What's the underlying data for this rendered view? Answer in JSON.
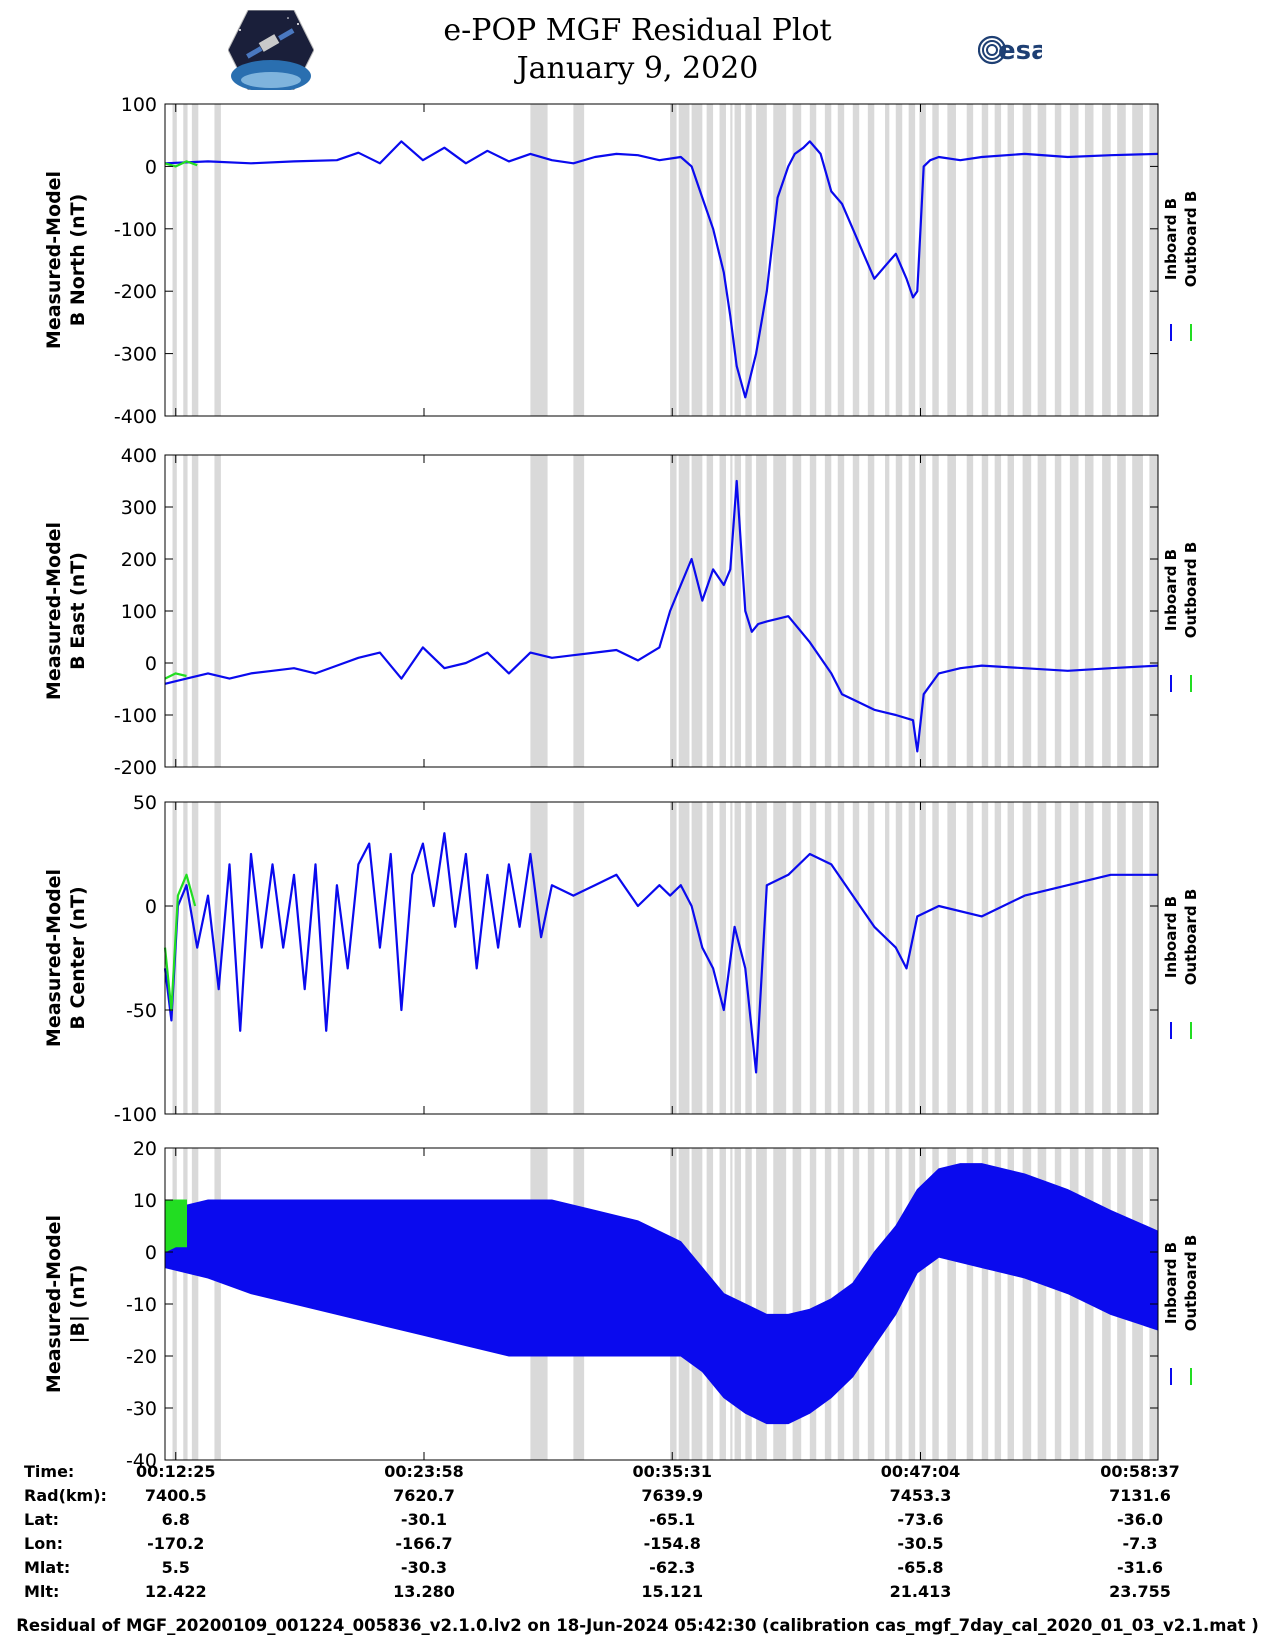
{
  "title": {
    "line1": "e-POP MGF Residual Plot",
    "line2": "January 9, 2020"
  },
  "logos": {
    "left": "cassiope-mission-logo",
    "right_text": "esa"
  },
  "colors": {
    "inboard": "#0a0aee",
    "outboard": "#22dd22",
    "shading": "#d9d9d9"
  },
  "legend": {
    "inboard": "Inboard B",
    "outboard": "Outboard B"
  },
  "chart_data": [
    {
      "type": "line",
      "ylabel": [
        "Measured-Model",
        "B North (nT)"
      ],
      "ylim": [
        -400,
        100
      ],
      "yticks": [
        100,
        0,
        -100,
        -200,
        -300,
        -400
      ],
      "xlim": [
        0,
        46.2
      ],
      "series": [
        {
          "name": "Inboard B",
          "x": [
            0,
            2,
            4,
            6,
            8,
            9,
            10,
            11,
            12,
            13,
            14,
            15,
            16,
            17,
            18,
            19,
            20,
            21,
            22,
            23,
            24,
            24.5,
            25,
            25.5,
            26,
            26.3,
            26.6,
            27,
            27.5,
            28,
            28.5,
            29,
            29.3,
            29.7,
            30,
            30.5,
            31,
            31.5,
            32,
            32.5,
            33,
            33.5,
            34,
            34.5,
            34.8,
            35,
            35.3,
            35.6,
            36,
            37,
            38,
            40,
            42,
            44,
            46.2
          ],
          "y": [
            5,
            8,
            5,
            8,
            10,
            22,
            5,
            40,
            10,
            30,
            5,
            25,
            8,
            20,
            10,
            5,
            15,
            20,
            18,
            10,
            15,
            0,
            -50,
            -100,
            -170,
            -240,
            -320,
            -370,
            -300,
            -200,
            -50,
            0,
            20,
            30,
            40,
            20,
            -40,
            -60,
            -100,
            -140,
            -180,
            -160,
            -140,
            -180,
            -210,
            -200,
            0,
            10,
            15,
            10,
            15,
            20,
            15,
            18,
            20
          ]
        },
        {
          "name": "Outboard B",
          "x": [
            0,
            0.5,
            1,
            1.5
          ],
          "y": [
            5,
            0,
            8,
            2
          ]
        }
      ]
    },
    {
      "type": "line",
      "ylabel": [
        "Measured-Model",
        "B East (nT)"
      ],
      "ylim": [
        -200,
        400
      ],
      "yticks": [
        400,
        300,
        200,
        100,
        0,
        -100,
        -200
      ],
      "xlim": [
        0,
        46.2
      ],
      "series": [
        {
          "name": "Inboard B",
          "x": [
            0,
            1,
            2,
            3,
            4,
            5,
            6,
            7,
            8,
            9,
            10,
            11,
            12,
            13,
            14,
            15,
            16,
            17,
            18,
            19,
            20,
            21,
            22,
            23,
            23.5,
            24,
            24.5,
            25,
            25.5,
            26,
            26.3,
            26.6,
            27,
            27.3,
            27.6,
            28,
            29,
            30,
            31,
            31.5,
            32,
            33,
            34,
            34.8,
            35,
            35.3,
            36,
            37,
            38,
            40,
            42,
            44,
            46.2
          ],
          "y": [
            -40,
            -30,
            -20,
            -30,
            -20,
            -15,
            -10,
            -20,
            -5,
            10,
            20,
            -30,
            30,
            -10,
            0,
            20,
            -20,
            20,
            10,
            15,
            20,
            25,
            5,
            30,
            100,
            150,
            200,
            120,
            180,
            150,
            180,
            350,
            100,
            60,
            75,
            80,
            90,
            40,
            -20,
            -60,
            -70,
            -90,
            -100,
            -110,
            -170,
            -60,
            -20,
            -10,
            -5,
            -10,
            -15,
            -10,
            -5
          ]
        },
        {
          "name": "Outboard B",
          "x": [
            0,
            0.5,
            1
          ],
          "y": [
            -30,
            -20,
            -25
          ]
        }
      ]
    },
    {
      "type": "line",
      "ylabel": [
        "Measured-Model",
        "B Center (nT)"
      ],
      "ylim": [
        -100,
        50
      ],
      "yticks": [
        50,
        0,
        -50,
        -100
      ],
      "xlim": [
        0,
        46.2
      ],
      "series": [
        {
          "name": "Inboard B",
          "x": [
            0,
            0.3,
            0.6,
            1,
            1.5,
            2,
            2.5,
            3,
            3.5,
            4,
            4.5,
            5,
            5.5,
            6,
            6.5,
            7,
            7.5,
            8,
            8.5,
            9,
            9.5,
            10,
            10.5,
            11,
            11.5,
            12,
            12.5,
            13,
            13.5,
            14,
            14.5,
            15,
            15.5,
            16,
            16.5,
            17,
            17.5,
            18,
            19,
            20,
            21,
            22,
            23,
            23.5,
            24,
            24.5,
            25,
            25.5,
            26,
            26.5,
            27,
            27.5,
            28,
            29,
            30,
            31,
            32,
            33,
            34,
            34.5,
            35,
            36,
            38,
            40,
            42,
            44,
            46.2
          ],
          "y": [
            -30,
            -55,
            0,
            10,
            -20,
            5,
            -40,
            20,
            -60,
            25,
            -20,
            20,
            -20,
            15,
            -40,
            20,
            -60,
            10,
            -30,
            20,
            30,
            -20,
            25,
            -50,
            15,
            30,
            0,
            35,
            -10,
            25,
            -30,
            15,
            -20,
            20,
            -10,
            25,
            -15,
            10,
            5,
            10,
            15,
            0,
            10,
            5,
            10,
            0,
            -20,
            -30,
            -50,
            -10,
            -30,
            -80,
            10,
            15,
            25,
            20,
            5,
            -10,
            -20,
            -30,
            -5,
            0,
            -5,
            5,
            10,
            15,
            15
          ]
        },
        {
          "name": "Outboard B",
          "x": [
            0,
            0.3,
            0.6,
            1,
            1.4
          ],
          "y": [
            -20,
            -50,
            5,
            15,
            0
          ]
        }
      ]
    },
    {
      "type": "line",
      "ylabel": [
        "Measured-Model",
        "|B| (nT)"
      ],
      "ylim": [
        -40,
        20
      ],
      "yticks": [
        20,
        10,
        0,
        -10,
        -20,
        -30,
        -40
      ],
      "xlim": [
        0,
        46.2
      ],
      "envelope": true,
      "series": [
        {
          "name": "Inboard B",
          "x": [
            0,
            2,
            4,
            6,
            8,
            10,
            12,
            14,
            16,
            18,
            20,
            22,
            24,
            25,
            26,
            27,
            28,
            29,
            30,
            31,
            32,
            33,
            34,
            35,
            36,
            37,
            38,
            40,
            42,
            44,
            46.2
          ],
          "upper": [
            8,
            10,
            10,
            10,
            10,
            10,
            10,
            10,
            10,
            10,
            8,
            6,
            2,
            -3,
            -8,
            -10,
            -12,
            -12,
            -11,
            -9,
            -6,
            0,
            5,
            12,
            16,
            17,
            17,
            15,
            12,
            8,
            4
          ],
          "lower": [
            -3,
            -5,
            -8,
            -10,
            -12,
            -14,
            -16,
            -18,
            -20,
            -20,
            -20,
            -20,
            -20,
            -23,
            -28,
            -31,
            -33,
            -33,
            -31,
            -28,
            -24,
            -18,
            -12,
            -4,
            -1,
            -2,
            -3,
            -5,
            -8,
            -12,
            -15
          ]
        },
        {
          "name": "Outboard B",
          "x": [
            0,
            0.5,
            1
          ],
          "upper": [
            10,
            10,
            10
          ],
          "lower": [
            0,
            1,
            1
          ]
        }
      ]
    }
  ],
  "gap_boundaries": [
    0.35,
    0.55,
    0.85,
    1.05,
    1.25,
    1.55,
    2.3,
    2.6,
    17.0,
    17.8,
    19.0,
    19.5,
    23.5,
    23.8,
    23.9,
    24.4,
    24.5,
    25.0,
    25.2,
    25.5,
    25.8,
    26.1,
    26.3,
    26.4,
    26.5,
    26.8,
    27.0,
    27.3,
    27.5,
    28.0,
    28.3,
    28.9,
    29.2,
    29.6,
    30.0,
    30.3,
    30.7,
    31.0,
    31.3,
    31.6,
    32.0,
    32.3,
    32.7,
    33.0,
    33.5,
    33.7,
    34.0,
    34.3,
    34.6,
    34.9,
    35.1,
    35.4,
    35.7,
    36.0,
    36.4,
    36.8,
    37.3,
    37.6,
    38.0,
    38.3,
    38.6,
    38.9,
    39.2,
    39.5,
    39.9,
    40.3,
    40.6,
    41.0,
    41.4,
    41.7,
    42.1,
    42.5,
    42.8,
    43.2,
    43.6,
    44.0,
    44.3,
    44.7,
    45.0,
    45.5,
    45.8,
    46.2
  ],
  "time_axis": {
    "labels": [
      "00:12:25",
      "00:23:58",
      "00:35:31",
      "00:47:04",
      "00:58:37"
    ],
    "tick_positions": [
      0.5,
      12.05,
      23.6,
      35.15,
      46.2
    ]
  },
  "info_table": {
    "rows": [
      {
        "label": "Time:",
        "values": [
          "00:12:25",
          "00:23:58",
          "00:35:31",
          "00:47:04",
          "00:58:37"
        ]
      },
      {
        "label": "Rad(km):",
        "values": [
          "7400.5",
          "7620.7",
          "7639.9",
          "7453.3",
          "7131.6"
        ]
      },
      {
        "label": "Lat:",
        "values": [
          "6.8",
          "-30.1",
          "-65.1",
          "-73.6",
          "-36.0"
        ]
      },
      {
        "label": "Lon:",
        "values": [
          "-170.2",
          "-166.7",
          "-154.8",
          "-30.5",
          "-7.3"
        ]
      },
      {
        "label": "Mlat:",
        "values": [
          "5.5",
          "-30.3",
          "-62.3",
          "-65.8",
          "-31.6"
        ]
      },
      {
        "label": "Mlt:",
        "values": [
          "12.422",
          "13.280",
          "15.121",
          "21.413",
          "23.755"
        ]
      }
    ]
  },
  "footer": "Residual of MGF_20200109_001224_005836_v2.1.0.lv2 on 18-Jun-2024 05:42:30 (calibration cas_mgf_7day_cal_2020_01_03_v2.1.mat )"
}
